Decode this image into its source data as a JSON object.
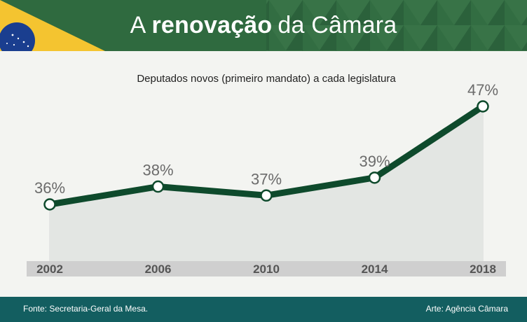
{
  "header": {
    "title_prefix": "A",
    "title_bold": "renovação",
    "title_suffix": "da Câmara"
  },
  "subtitle": "Deputados novos (primeiro mandato) a cada legislatura",
  "footer": {
    "source": "Fonte: Secretaria-Geral da Mesa.",
    "credit": "Arte: Agência Câmara"
  },
  "colors": {
    "header_green": "#2f6a3f",
    "line_green": "#0e4a2c",
    "brazil_yellow": "#f4c430",
    "brazil_blue": "#1a3e8f",
    "footer_teal": "#135e60",
    "axis_band": "#cfcfcf"
  },
  "chart_data": {
    "type": "line",
    "categories": [
      "2002",
      "2006",
      "2010",
      "2014",
      "2018"
    ],
    "values": [
      36,
      38,
      37,
      39,
      47
    ],
    "value_labels": [
      "36%",
      "38%",
      "37%",
      "39%",
      "47%"
    ],
    "title": "Deputados novos (primeiro mandato) a cada legislatura",
    "ylim": [
      28,
      49
    ]
  }
}
